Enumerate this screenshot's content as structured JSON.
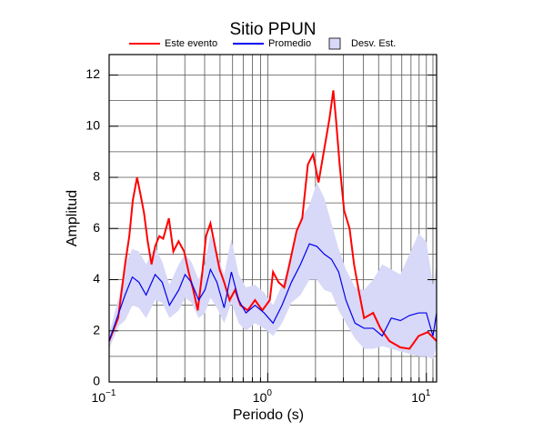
{
  "chart_data": {
    "type": "line",
    "title": "Sitio PPUN",
    "xlabel": "Periodo (s)",
    "ylabel": "Amplitud",
    "xscale": "log",
    "grid": true,
    "xlim": [
      0.1,
      11.6
    ],
    "ylim": [
      0,
      12.8
    ],
    "xticks": [
      {
        "value": 0.1,
        "label": "10",
        "exponent": "−1"
      },
      {
        "value": 1,
        "label": "10",
        "exponent": "0"
      },
      {
        "value": 10,
        "label": "10",
        "exponent": "1"
      }
    ],
    "xminorticks": [
      0.2,
      0.3,
      0.4,
      0.5,
      0.6,
      0.7,
      0.8,
      0.9,
      2,
      3,
      4,
      5,
      6,
      7,
      8,
      9,
      11
    ],
    "yticks": [
      0,
      2,
      4,
      6,
      8,
      10,
      12
    ],
    "yminorticks": [
      1,
      3,
      5,
      7,
      9,
      11
    ],
    "series": [
      {
        "name": "Este evento",
        "color": "#ff0000",
        "x": [
          0.1,
          0.114,
          0.126,
          0.134,
          0.141,
          0.15,
          0.158,
          0.166,
          0.175,
          0.185,
          0.195,
          0.207,
          0.219,
          0.238,
          0.254,
          0.274,
          0.297,
          0.317,
          0.339,
          0.362,
          0.387,
          0.408,
          0.435,
          0.465,
          0.497,
          0.531,
          0.575,
          0.622,
          0.673,
          0.748,
          0.831,
          0.924,
          1.03,
          1.08,
          1.17,
          1.27,
          1.37,
          1.52,
          1.65,
          1.79,
          1.93,
          2.09,
          2.27,
          2.45,
          2.59,
          2.69,
          2.84,
          3.03,
          3.28,
          3.5,
          3.74,
          4.05,
          4.62,
          5.13,
          5.85,
          6.86,
          7.83,
          8.94,
          10.2,
          11.6
        ],
        "values": [
          1.6,
          2.5,
          4.6,
          5.7,
          7.1,
          8.0,
          7.3,
          6.6,
          5.5,
          4.6,
          5.3,
          5.7,
          5.6,
          6.4,
          5.1,
          5.5,
          5.1,
          4.3,
          3.6,
          2.8,
          4.3,
          5.7,
          6.2,
          5.3,
          4.4,
          3.9,
          3.2,
          3.6,
          3.0,
          2.8,
          3.2,
          2.8,
          3.2,
          4.3,
          3.9,
          3.7,
          4.6,
          5.9,
          6.4,
          8.5,
          8.9,
          7.8,
          9.1,
          10.3,
          11.4,
          10.3,
          8.5,
          6.7,
          6.0,
          4.6,
          3.6,
          2.5,
          2.7,
          2.1,
          1.6,
          1.35,
          1.3,
          1.8,
          1.95,
          1.6
        ]
      },
      {
        "name": "Promedio",
        "color": "#0000ee",
        "x": [
          0.1,
          0.115,
          0.126,
          0.14,
          0.154,
          0.171,
          0.195,
          0.216,
          0.24,
          0.275,
          0.301,
          0.33,
          0.367,
          0.402,
          0.435,
          0.478,
          0.531,
          0.59,
          0.656,
          0.729,
          0.831,
          0.949,
          1.08,
          1.23,
          1.41,
          1.61,
          1.83,
          2.04,
          2.27,
          2.52,
          2.8,
          3.11,
          3.55,
          4.05,
          4.62,
          5.27,
          6.01,
          6.86,
          7.83,
          8.93,
          10.0,
          11.0,
          11.6
        ],
        "values": [
          1.6,
          2.7,
          3.4,
          4.1,
          3.9,
          3.4,
          4.2,
          3.9,
          3.0,
          3.6,
          4.2,
          3.9,
          3.2,
          3.6,
          4.4,
          3.9,
          2.9,
          4.3,
          3.2,
          2.7,
          3.0,
          2.7,
          2.3,
          3.0,
          3.9,
          4.6,
          5.4,
          5.3,
          5.0,
          4.8,
          4.3,
          3.2,
          2.3,
          2.1,
          2.1,
          1.8,
          2.5,
          2.4,
          2.6,
          2.7,
          2.7,
          1.8,
          2.7
        ]
      },
      {
        "name": "Desv. Est.",
        "color": "#d8d8f8",
        "type": "band",
        "x": [
          0.1,
          0.115,
          0.126,
          0.14,
          0.154,
          0.171,
          0.195,
          0.216,
          0.24,
          0.275,
          0.301,
          0.33,
          0.367,
          0.402,
          0.435,
          0.478,
          0.531,
          0.59,
          0.656,
          0.729,
          0.831,
          0.949,
          1.08,
          1.23,
          1.41,
          1.61,
          1.83,
          2.04,
          2.27,
          2.52,
          2.8,
          3.11,
          3.55,
          4.05,
          4.62,
          5.27,
          6.01,
          6.86,
          7.83,
          8.93,
          10.0,
          11.0,
          11.6
        ],
        "lower": [
          1.3,
          2.2,
          2.4,
          3.0,
          2.9,
          2.5,
          3.2,
          3.1,
          2.5,
          2.8,
          3.3,
          3.1,
          2.5,
          2.7,
          3.3,
          2.9,
          2.3,
          3.1,
          2.3,
          2.0,
          2.3,
          2.1,
          1.8,
          2.3,
          3.1,
          3.4,
          4.0,
          4.0,
          3.6,
          3.5,
          2.8,
          2.3,
          1.7,
          1.3,
          1.3,
          1.4,
          1.3,
          1.2,
          1.1,
          1.0,
          1.0,
          0.9,
          1.4
        ],
        "upper": [
          1.9,
          3.3,
          4.6,
          5.2,
          5.1,
          4.6,
          5.3,
          4.7,
          3.8,
          4.6,
          5.0,
          4.7,
          4.0,
          4.6,
          5.8,
          5.0,
          4.2,
          5.6,
          4.2,
          3.7,
          3.8,
          3.5,
          3.0,
          3.8,
          4.8,
          6.4,
          6.9,
          7.8,
          7.2,
          6.2,
          5.2,
          4.4,
          3.7,
          3.6,
          4.0,
          4.6,
          4.4,
          4.2,
          5.0,
          5.8,
          5.5,
          3.8,
          4.6
        ]
      }
    ]
  }
}
